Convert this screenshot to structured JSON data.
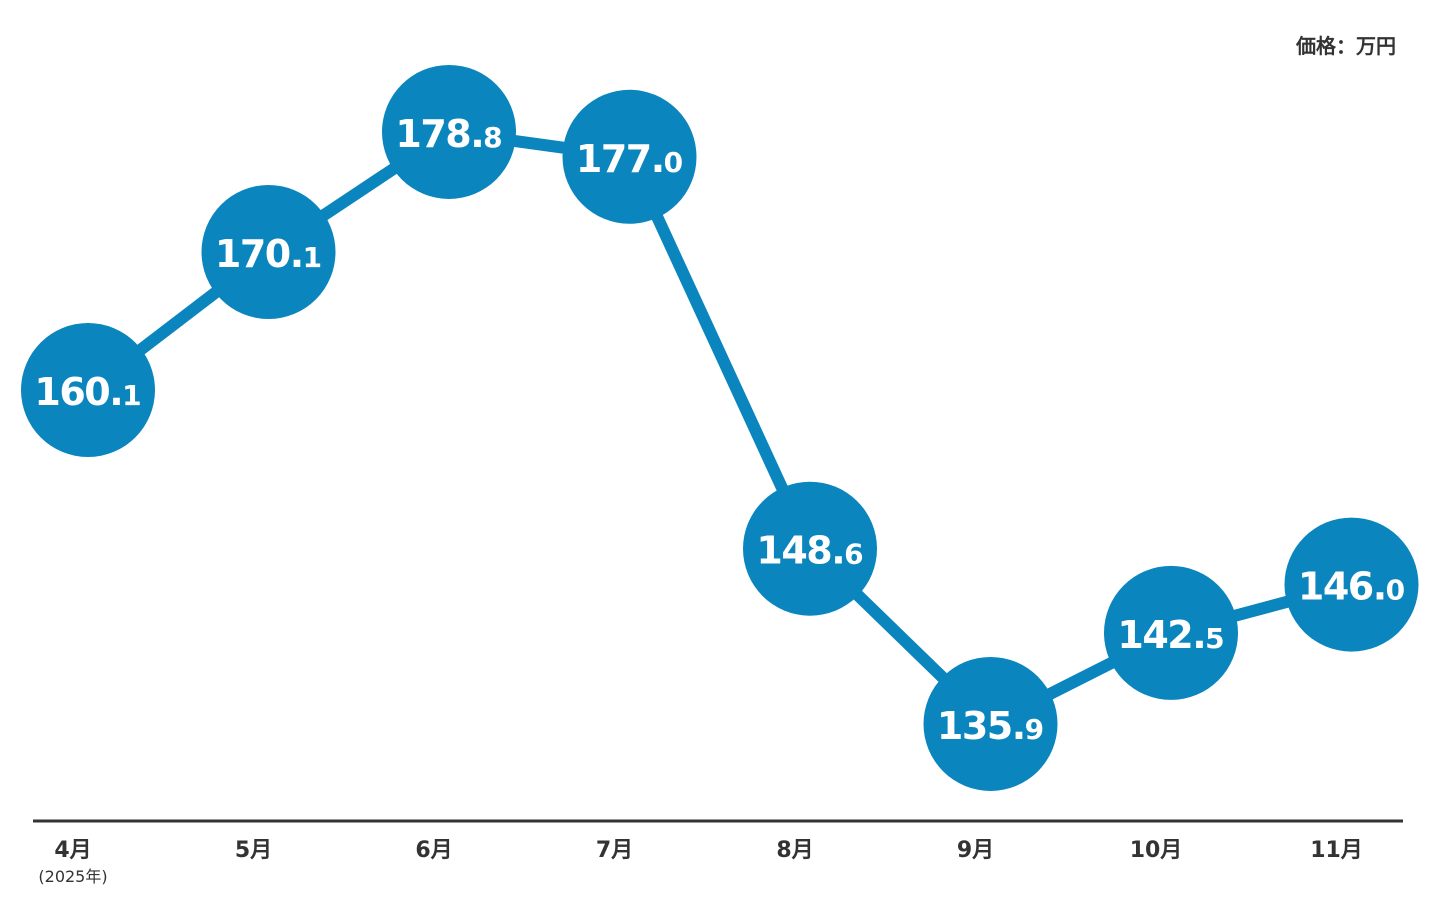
{
  "unit_label": "価格：万円",
  "accent_color": "#0a85bd",
  "chart_data": {
    "type": "line",
    "title": "",
    "xlabel": "",
    "ylabel": "価格：万円",
    "categories": [
      "4月",
      "5月",
      "6月",
      "7月",
      "8月",
      "9月",
      "10月",
      "11月"
    ],
    "category_notes": [
      "(2025年)",
      "",
      "",
      "",
      "",
      "",
      "",
      ""
    ],
    "series": [
      {
        "values": [
          160.1,
          170.1,
          178.8,
          177.0,
          148.6,
          135.9,
          142.5,
          146.0
        ]
      }
    ],
    "value_labels": [
      {
        "int": "160.",
        "dec": "1"
      },
      {
        "int": "170.",
        "dec": "1"
      },
      {
        "int": "178.",
        "dec": "8"
      },
      {
        "int": "177.",
        "dec": "0"
      },
      {
        "int": "148.",
        "dec": "6"
      },
      {
        "int": "135.",
        "dec": "9"
      },
      {
        "int": "142.",
        "dec": "5"
      },
      {
        "int": "146.",
        "dec": "0"
      }
    ],
    "ylim": [
      130,
      180
    ],
    "grid": false,
    "legend": "none"
  }
}
